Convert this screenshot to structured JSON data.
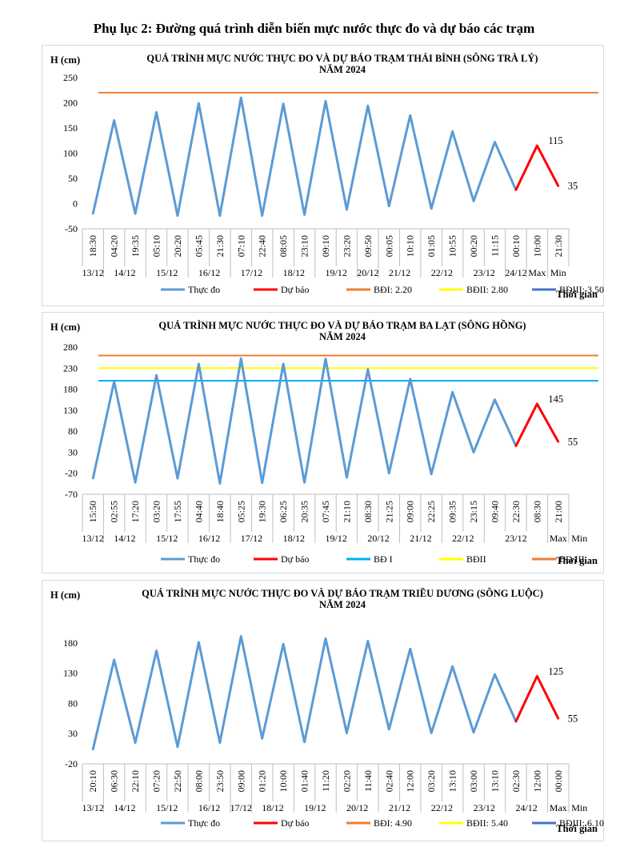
{
  "page_title": "Phụ lục 2: Đường quá trình diễn biến mực nước thực đo và dự báo các trạm",
  "colors": {
    "observed": "#5b9bd5",
    "forecast": "#ff0000",
    "level1": "#00b0f0",
    "level2": "#ffff00",
    "level3": "#ed7d31",
    "legend_bdiii_thaibinh": "#4472c4"
  },
  "chart_data": [
    {
      "type": "line",
      "title": "QUÁ TRÌNH  MỰC NƯỚC THỰC ĐO VÀ DỰ BÁO TRẠM THÁI BÌNH (SÔNG TRÀ LÝ)",
      "subtitle": "NĂM 2024",
      "ylabel": "H (cm)",
      "xlabel": "Thời gian",
      "ylim": [
        -50,
        250
      ],
      "yticks": [
        -50,
        0,
        50,
        100,
        150,
        200,
        250
      ],
      "time_labels": [
        "18:30",
        "04:20",
        "19:35",
        "05:10",
        "20:20",
        "05:45",
        "21:30",
        "07:10",
        "22:40",
        "08:05",
        "23:10",
        "09:10",
        "23:20",
        "09:50",
        "00:05",
        "10:10",
        "01:05",
        "10:55",
        "00:20",
        "11:15",
        "00:10",
        "10:00",
        "21:30"
      ],
      "date_groups": [
        {
          "label": "13/12",
          "span": 1
        },
        {
          "label": "14/12",
          "span": 2
        },
        {
          "label": "15/12",
          "span": 2
        },
        {
          "label": "16/12",
          "span": 2
        },
        {
          "label": "17/12",
          "span": 2
        },
        {
          "label": "18/12",
          "span": 2
        },
        {
          "label": "19/12",
          "span": 2
        },
        {
          "label": "20/12",
          "span": 1
        },
        {
          "label": "21/12",
          "span": 2
        },
        {
          "label": "22/12",
          "span": 2
        },
        {
          "label": "23/12",
          "span": 2
        },
        {
          "label": "24/12",
          "span": 1
        },
        {
          "label": "Max",
          "span": 1
        },
        {
          "label": "Min",
          "span": 1
        }
      ],
      "series": [
        {
          "name": "Thực đo",
          "values": [
            -20,
            165,
            -20,
            181,
            -24,
            199,
            -24,
            210,
            -24,
            198,
            -22,
            203,
            -12,
            194,
            -5,
            175,
            -10,
            143,
            5,
            122,
            27,
            null,
            null
          ]
        },
        {
          "name": "Dự báo",
          "values": [
            null,
            null,
            null,
            null,
            null,
            null,
            null,
            null,
            null,
            null,
            null,
            null,
            null,
            null,
            null,
            null,
            null,
            null,
            null,
            null,
            27,
            115,
            35
          ]
        }
      ],
      "data_labels": [
        {
          "index": 21,
          "text": "115"
        },
        {
          "index": 22,
          "text": "35"
        }
      ],
      "hlines": [
        {
          "name": "BĐI: 2.20",
          "value": 220,
          "color": "#ed7d31"
        }
      ],
      "legend": [
        {
          "name": "Thực đo",
          "color": "#5b9bd5"
        },
        {
          "name": "Dự báo",
          "color": "#ff0000"
        },
        {
          "name": "BĐI: 2.20",
          "color": "#ed7d31"
        },
        {
          "name": "BĐII: 2.80",
          "color": "#ffff00"
        },
        {
          "name": "BĐIII: 3.50",
          "color": "#4472c4"
        }
      ]
    },
    {
      "type": "line",
      "title": "QUÁ TRÌNH  MỰC NƯỚC THỰC ĐO VÀ DỰ BÁO TRẠM  BA LẠT  (SÔNG HỒNG)",
      "subtitle": "NĂM 2024",
      "ylabel": "H (cm)",
      "xlabel": "Thời gian",
      "ylim": [
        -70,
        280
      ],
      "yticks": [
        -70,
        -20,
        30,
        80,
        130,
        180,
        230,
        280
      ],
      "time_labels": [
        "15:50",
        "02:55",
        "17:20",
        "03:20",
        "17:55",
        "04:40",
        "18:40",
        "05:25",
        "19:30",
        "06:25",
        "20:35",
        "07:45",
        "21:10",
        "08:30",
        "21:25",
        "09:00",
        "22:25",
        "09:35",
        "23:15",
        "09:40",
        "22:30",
        "08:30",
        "21:00"
      ],
      "date_groups": [
        {
          "label": "13/12",
          "span": 1
        },
        {
          "label": "14/12",
          "span": 2
        },
        {
          "label": "15/12",
          "span": 2
        },
        {
          "label": "16/12",
          "span": 2
        },
        {
          "label": "17/12",
          "span": 2
        },
        {
          "label": "18/12",
          "span": 2
        },
        {
          "label": "19/12",
          "span": 2
        },
        {
          "label": "20/12",
          "span": 2
        },
        {
          "label": "21/12",
          "span": 2
        },
        {
          "label": "22/12",
          "span": 2
        },
        {
          "label": "23/12",
          "span": 3
        },
        {
          "label": "Max",
          "span": 1
        },
        {
          "label": "Min",
          "span": 1
        }
      ],
      "series": [
        {
          "name": "Thực đo",
          "values": [
            -32,
            198,
            -42,
            213,
            -32,
            240,
            -44,
            253,
            -43,
            240,
            -42,
            252,
            -30,
            227,
            -20,
            204,
            -22,
            173,
            30,
            155,
            45,
            null,
            null
          ]
        },
        {
          "name": "Dự báo",
          "values": [
            null,
            null,
            null,
            null,
            null,
            null,
            null,
            null,
            null,
            null,
            null,
            null,
            null,
            null,
            null,
            null,
            null,
            null,
            null,
            null,
            45,
            145,
            55
          ]
        }
      ],
      "data_labels": [
        {
          "index": 21,
          "text": "145"
        },
        {
          "index": 22,
          "text": "55"
        }
      ],
      "hlines": [
        {
          "name": "BĐ I",
          "value": 200,
          "color": "#00b0f0"
        },
        {
          "name": "BĐII",
          "value": 230,
          "color": "#ffff00"
        },
        {
          "name": "BĐ III",
          "value": 260,
          "color": "#ed7d31"
        }
      ],
      "legend": [
        {
          "name": "Thực đo",
          "color": "#5b9bd5"
        },
        {
          "name": "Dự báo",
          "color": "#ff0000"
        },
        {
          "name": "BĐ I",
          "color": "#00b0f0"
        },
        {
          "name": "BĐII",
          "color": "#ffff00"
        },
        {
          "name": "BĐ III",
          "color": "#ed7d31"
        }
      ]
    },
    {
      "type": "line",
      "title": "QUÁ TRÌNH MỰC NƯỚC THỰC ĐO VÀ DỰ BÁO TRẠM TRIỀU DƯƠNG (SÔNG LUỘC)",
      "subtitle": "NĂM 2024",
      "ylabel": "H (cm)",
      "xlabel": "Thời gian",
      "ylim": [
        -20,
        230
      ],
      "yticks": [
        -20,
        30,
        80,
        130,
        180
      ],
      "time_labels": [
        "20:10",
        "06:30",
        "22:10",
        "07:20",
        "22:50",
        "08:00",
        "23:50",
        "09:00",
        "01:20",
        "10:00",
        "01:40",
        "11:20",
        "02:20",
        "11:40",
        "02:40",
        "12:00",
        "03:20",
        "13:10",
        "03:00",
        "13:10",
        "02:30",
        "12:00",
        "00:00"
      ],
      "date_groups": [
        {
          "label": "13/12",
          "span": 1
        },
        {
          "label": "14/12",
          "span": 2
        },
        {
          "label": "15/12",
          "span": 2
        },
        {
          "label": "16/12",
          "span": 2
        },
        {
          "label": "17/12",
          "span": 1
        },
        {
          "label": "18/12",
          "span": 2
        },
        {
          "label": "19/12",
          "span": 2
        },
        {
          "label": "20/12",
          "span": 2
        },
        {
          "label": "21/12",
          "span": 2
        },
        {
          "label": "22/12",
          "span": 2
        },
        {
          "label": "23/12",
          "span": 2
        },
        {
          "label": "24/12",
          "span": 2
        },
        {
          "label": "Max",
          "span": 1
        },
        {
          "label": "Min",
          "span": 1
        }
      ],
      "series": [
        {
          "name": "Thực đo",
          "values": [
            4,
            152,
            15,
            167,
            8,
            181,
            15,
            191,
            22,
            178,
            16,
            187,
            31,
            183,
            37,
            170,
            31,
            141,
            32,
            128,
            50,
            null,
            null
          ]
        },
        {
          "name": "Dự báo",
          "values": [
            null,
            null,
            null,
            null,
            null,
            null,
            null,
            null,
            null,
            null,
            null,
            null,
            null,
            null,
            null,
            null,
            null,
            null,
            null,
            null,
            50,
            125,
            55
          ]
        }
      ],
      "data_labels": [
        {
          "index": 21,
          "text": "125"
        },
        {
          "index": 22,
          "text": "55"
        }
      ],
      "hlines": [],
      "legend": [
        {
          "name": "Thực đo",
          "color": "#5b9bd5"
        },
        {
          "name": "Dự báo",
          "color": "#ff0000"
        },
        {
          "name": "BĐI: 4.90",
          "color": "#ed7d31"
        },
        {
          "name": "BĐII: 5.40",
          "color": "#ffff00"
        },
        {
          "name": "BĐIII: 6.10",
          "color": "#4472c4"
        }
      ]
    }
  ]
}
